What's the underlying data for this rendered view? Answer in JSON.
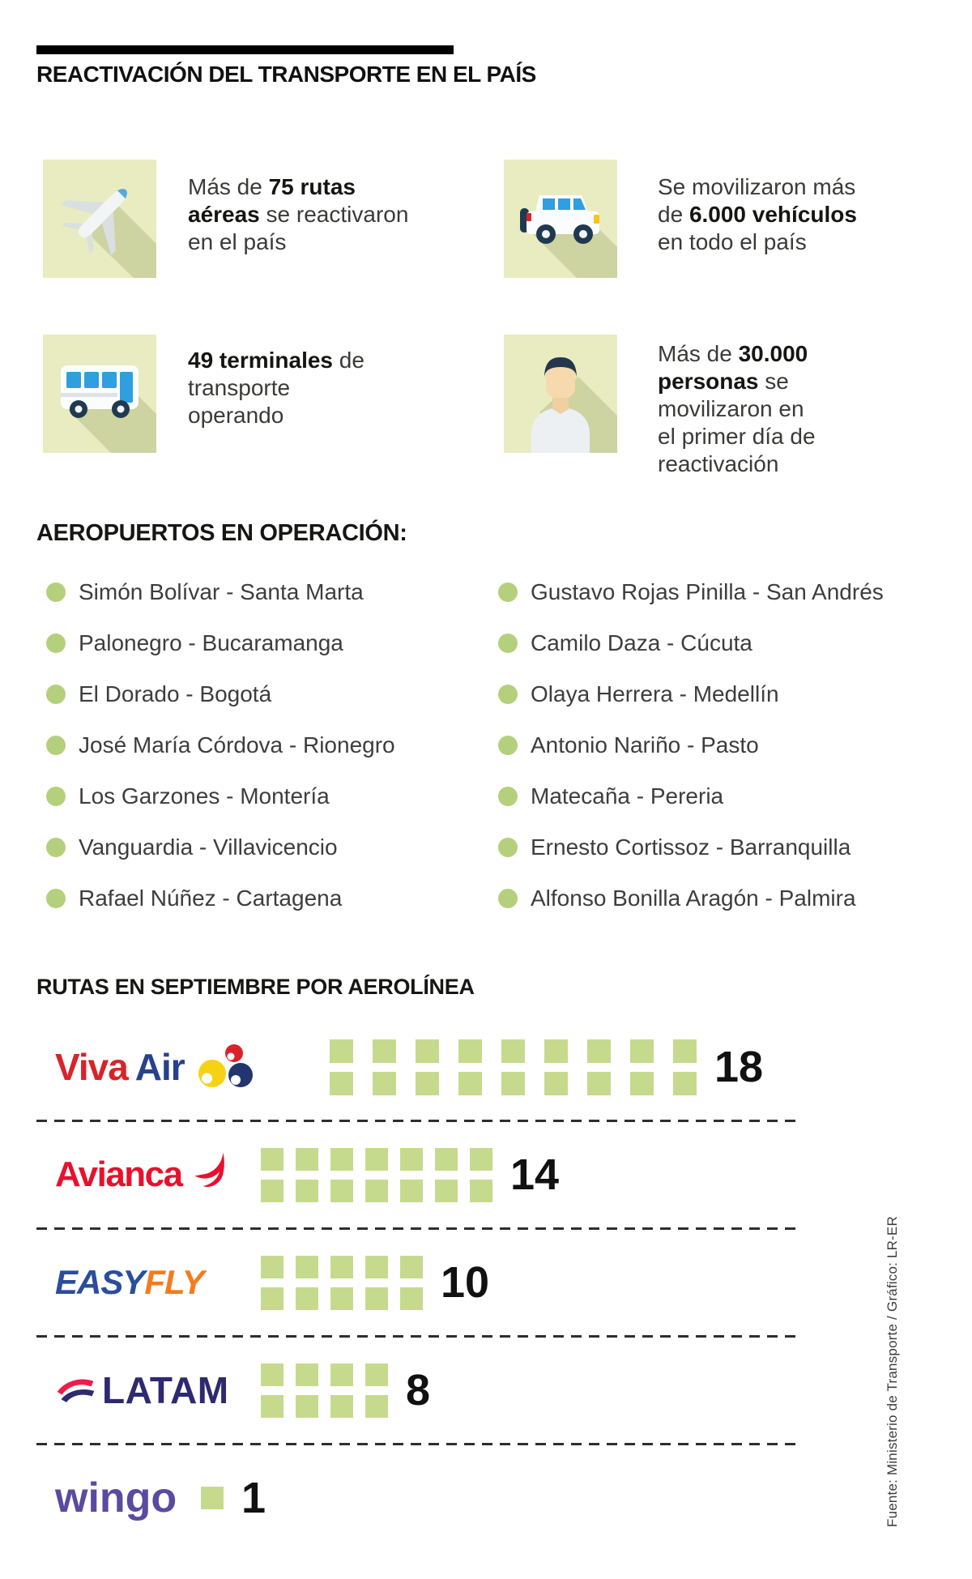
{
  "header": {
    "title": "REACTIVACIÓN DEL TRANSPORTE EN EL PAÍS"
  },
  "stats": [
    {
      "icon": "airplane-icon",
      "segments": [
        {
          "text": "Más de ",
          "bold": false
        },
        {
          "text": "75 rutas aéreas",
          "bold": true
        },
        {
          "text": " se reactivaron en el país",
          "bold": false
        }
      ]
    },
    {
      "icon": "vehicle-icon",
      "segments": [
        {
          "text": "Se movilizaron más de ",
          "bold": false
        },
        {
          "text": "6.000 vehículos",
          "bold": true
        },
        {
          "text": " en todo el país",
          "bold": false
        }
      ]
    },
    {
      "icon": "bus-icon",
      "segments": [
        {
          "text": "49 terminales",
          "bold": true
        },
        {
          "text": " de transporte operando",
          "bold": false
        }
      ]
    },
    {
      "icon": "person-icon",
      "segments": [
        {
          "text": "Más de ",
          "bold": false
        },
        {
          "text": "30.000 personas",
          "bold": true
        },
        {
          "text": " se movilizaron en el primer día de reactivación",
          "bold": false
        }
      ]
    }
  ],
  "airports": {
    "heading": "AEROPUERTOS EN OPERACIÓN:",
    "left_column": [
      "Simón Bolívar - Santa Marta",
      "Palonegro - Bucaramanga",
      "El Dorado - Bogotá",
      "José María Córdova - Rionegro",
      "Los Garzones - Montería",
      "Vanguardia - Villavicencio",
      "Rafael Núñez - Cartagena"
    ],
    "right_column": [
      "Gustavo Rojas Pinilla - San Andrés",
      "Camilo Daza - Cúcuta",
      "Olaya Herrera - Medellín",
      "Antonio Nariño - Pasto",
      "Matecaña - Pereria",
      "Ernesto Cortissoz - Barranquilla",
      "Alfonso Bonilla Aragón - Palmira"
    ]
  },
  "routes_section": {
    "heading": "RUTAS EN SEPTIEMBRE POR AEROLÍNEA"
  },
  "airlines": [
    {
      "name": "Viva Air",
      "routes": 18,
      "logo": {
        "type": "vivaair",
        "parts": [
          {
            "text": "Viva",
            "color": "#d8232a"
          },
          {
            "text": "Air",
            "color": "#28418e"
          }
        ]
      }
    },
    {
      "name": "Avianca",
      "routes": 14,
      "logo": {
        "type": "avianca",
        "parts": [
          {
            "text": "Avianca",
            "color": "#e8112d"
          }
        ]
      }
    },
    {
      "name": "Easyfly",
      "routes": 10,
      "logo": {
        "type": "easyfly",
        "parts": [
          {
            "text": "EASY",
            "color": "#2b4d9b"
          },
          {
            "text": "FLY",
            "color": "#f47b20"
          }
        ]
      }
    },
    {
      "name": "LATAM",
      "routes": 8,
      "logo": {
        "type": "latam",
        "parts": [
          {
            "text": "LATAM",
            "color": "#2d2a70"
          }
        ]
      }
    },
    {
      "name": "Wingo",
      "routes": 1,
      "logo": {
        "type": "wingo",
        "parts": [
          {
            "text": "wingo",
            "color": "#5b4a9f"
          }
        ]
      }
    }
  ],
  "chart_data": {
    "type": "bar",
    "title": "RUTAS EN SEPTIEMBRE POR AEROLÍNEA",
    "categories": [
      "Viva Air",
      "Avianca",
      "Easyfly",
      "LATAM",
      "Wingo"
    ],
    "values": [
      18,
      14,
      10,
      8,
      1
    ],
    "unit_label": "rutas",
    "legend_position": "none",
    "grid": false,
    "style": "pictogram-squares"
  },
  "source": "Fuente: Ministerio de Transporte / Gráfico: LR-ER",
  "colors": {
    "square_green": "#c6da8e",
    "bullet_green": "#b5d07c",
    "icon_box_bg": "#e9ecc0",
    "text_dark": "#1d1d1b",
    "text_body": "#3d3d3d"
  }
}
